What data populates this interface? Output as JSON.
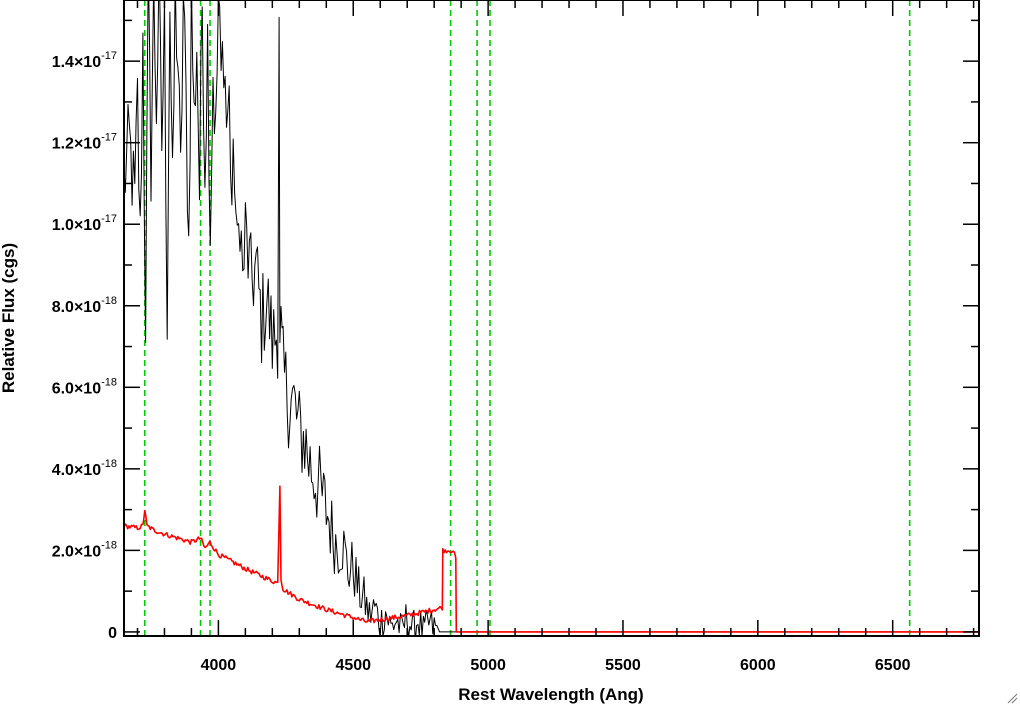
{
  "chart_data": {
    "type": "line",
    "xlabel": "Rest Wavelength (Ang)",
    "ylabel": "Relative Flux (cgs)",
    "xlim": [
      3650,
      6820
    ],
    "ylim": [
      -1e-19,
      1.55e-17
    ],
    "x_ticks": [
      {
        "value": 4000,
        "label": "4000"
      },
      {
        "value": 4500,
        "label": "4500"
      },
      {
        "value": 5000,
        "label": "5000"
      },
      {
        "value": 5500,
        "label": "5500"
      },
      {
        "value": 6000,
        "label": "6000"
      },
      {
        "value": 6500,
        "label": "6500"
      }
    ],
    "y_ticks": [
      {
        "value": 0,
        "mant": "0",
        "exp": ""
      },
      {
        "value": 2e-18,
        "mant": "2.0×10",
        "exp": "-18"
      },
      {
        "value": 4e-18,
        "mant": "4.0×10",
        "exp": "-18"
      },
      {
        "value": 6e-18,
        "mant": "6.0×10",
        "exp": "-18"
      },
      {
        "value": 8e-18,
        "mant": "8.0×10",
        "exp": "-18"
      },
      {
        "value": 1e-17,
        "mant": "1.0×10",
        "exp": "-17"
      },
      {
        "value": 1.2e-17,
        "mant": "1.2×10",
        "exp": "-17"
      },
      {
        "value": 1.4e-17,
        "mant": "1.4×10",
        "exp": "-17"
      }
    ],
    "grid": false,
    "reference_lines": {
      "style": "dashed",
      "color": "#00cc00",
      "x": [
        3727,
        3934,
        3969,
        4861,
        4959,
        5007,
        6563
      ]
    },
    "series": [
      {
        "color": "#000000",
        "x": [
          3650,
          3670,
          3690,
          3700,
          3710,
          3720,
          3730,
          3740,
          3750,
          3760,
          3770,
          3780,
          3790,
          3800,
          3810,
          3820,
          3830,
          3840,
          3850,
          3860,
          3870,
          3880,
          3890,
          3900,
          3910,
          3920,
          3930,
          3940,
          3950,
          3960,
          3970,
          3980,
          3990,
          4000,
          4010,
          4020,
          4030,
          4040,
          4050,
          4060,
          4070,
          4080,
          4090,
          4100,
          4120,
          4140,
          4160,
          4180,
          4200,
          4220,
          4225,
          4228,
          4232,
          4240,
          4260,
          4280,
          4300,
          4320,
          4340,
          4360,
          4380,
          4400,
          4420,
          4440,
          4460,
          4480,
          4500,
          4520,
          4540,
          4560,
          4580,
          4600,
          4620,
          4640,
          4660,
          4680,
          4700,
          4720,
          4740,
          4760,
          4780,
          4800,
          4820,
          4840,
          4860,
          4870,
          4880,
          4890,
          4900,
          5000,
          5500,
          6000,
          6500,
          6820
        ],
        "y": [
          1.1e-17,
          1.2e-17,
          1.05e-17,
          1.3e-17,
          9.5e-18,
          1.45e-17,
          7.8e-18,
          1.55e-17,
          1.15e-17,
          1.55e-17,
          1.3e-17,
          1.55e-17,
          1.2e-17,
          1.48e-17,
          8e-18,
          1.55e-17,
          1.05e-17,
          1.55e-17,
          1.4e-17,
          1.1e-17,
          1.55e-17,
          1.3e-17,
          9.5e-18,
          1.55e-17,
          1.25e-17,
          1.45e-17,
          1.08e-17,
          1.55e-17,
          1.15e-17,
          1.45e-17,
          1e-17,
          1.38e-17,
          1.2e-17,
          1.55e-17,
          1.35e-17,
          1.45e-17,
          1.25e-17,
          1.3e-17,
          1.05e-17,
          1.15e-17,
          9e-18,
          1.05e-17,
          8.5e-18,
          9.8e-18,
          8.6e-18,
          8.9e-18,
          7.6e-18,
          8.2e-18,
          7.1e-18,
          7.4e-18,
          1.55e-17,
          6.6e-18,
          7.2e-18,
          6.3e-18,
          5.7e-18,
          5.6e-18,
          4.9e-18,
          4.7e-18,
          4.1e-18,
          3.8e-18,
          3.4e-18,
          3e-18,
          2.5e-18,
          2.1e-18,
          2.2e-18,
          1.5e-18,
          1.6e-18,
          1e-18,
          8e-19,
          4e-19,
          6e-19,
          2e-19,
          5e-19,
          1e-19,
          3e-19,
          0.0,
          4e-19,
          5e-20,
          3e-19,
          0.0,
          2e-19,
          1e-19,
          0.0,
          0.0,
          0.0,
          0.0,
          0.0,
          0.0,
          0.0,
          0.0,
          0.0,
          0.0,
          0.0,
          0.0
        ],
        "noise": 1.2e-18
      },
      {
        "color": "#ff0000",
        "x": [
          3650,
          3700,
          3720,
          3727,
          3735,
          3760,
          3800,
          3850,
          3900,
          3934,
          3950,
          3969,
          4000,
          4100,
          4200,
          4220,
          4228,
          4232,
          4240,
          4300,
          4400,
          4500,
          4550,
          4600,
          4700,
          4800,
          4830,
          4832,
          4850,
          4870,
          4880,
          4882,
          4900,
          5000,
          5500,
          6000,
          6500,
          6820
        ],
        "y": [
          2.6e-18,
          2.55e-18,
          2.6e-18,
          3e-18,
          2.6e-18,
          2.5e-18,
          2.4e-18,
          2.3e-18,
          2.2e-18,
          2.3e-18,
          2.05e-18,
          2.2e-18,
          1.9e-18,
          1.55e-18,
          1.25e-18,
          1.2e-18,
          3.6e-18,
          1.3e-18,
          1.05e-18,
          8e-19,
          5.5e-19,
          3.5e-19,
          2.5e-19,
          3e-19,
          4e-19,
          5.5e-19,
          6e-19,
          2e-18,
          2e-18,
          2e-18,
          1.8e-18,
          0.0,
          0.0,
          0.0,
          0.0,
          0.0,
          0.0,
          0.0
        ],
        "noise": 6e-20
      }
    ]
  }
}
